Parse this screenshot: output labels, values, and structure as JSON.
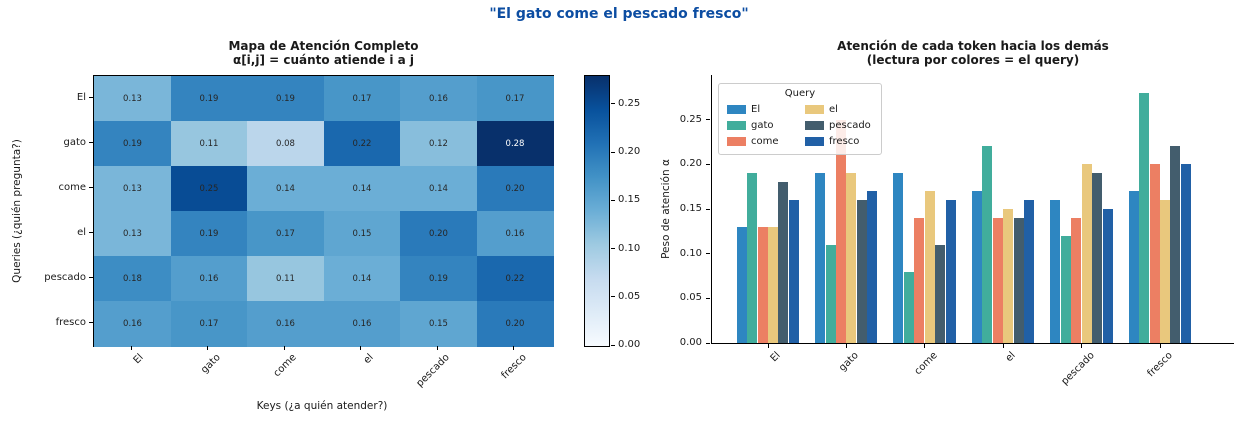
{
  "figure_title": "\"El gato come el pescado fresco\"",
  "colors": {
    "figure_title": "#0c4da2",
    "axis": "#000000",
    "tick_text": "#1a1a1a",
    "cell_text_dark": "#262626",
    "cell_text_light": "#ffffff"
  },
  "tokens": [
    "El",
    "gato",
    "come",
    "el",
    "pescado",
    "fresco"
  ],
  "chart_data": [
    {
      "type": "heatmap",
      "title": "Mapa de Atención Completo",
      "subtitle": "α[i,j] = cuánto atiende i a j",
      "xlabel": "Keys (¿a quién atender?)",
      "ylabel": "Queries (¿quién pregunta?)",
      "rows": [
        "El",
        "gato",
        "come",
        "el",
        "pescado",
        "fresco"
      ],
      "cols": [
        "El",
        "gato",
        "come",
        "el",
        "pescado",
        "fresco"
      ],
      "values": [
        [
          0.13,
          0.19,
          0.19,
          0.17,
          0.16,
          0.17
        ],
        [
          0.19,
          0.11,
          0.08,
          0.22,
          0.12,
          0.28
        ],
        [
          0.13,
          0.25,
          0.14,
          0.14,
          0.14,
          0.2
        ],
        [
          0.13,
          0.19,
          0.17,
          0.15,
          0.2,
          0.16
        ],
        [
          0.18,
          0.16,
          0.11,
          0.14,
          0.19,
          0.22
        ],
        [
          0.16,
          0.17,
          0.16,
          0.16,
          0.15,
          0.2
        ]
      ],
      "colormap": "Blues",
      "vmin": 0.0,
      "vmax": 0.28,
      "colorbar_ticks": [
        0.0,
        0.05,
        0.1,
        0.15,
        0.2,
        0.25
      ],
      "grid": false
    },
    {
      "type": "bar",
      "title": "Atención de cada token hacia los demás",
      "subtitle": "(lectura por colores = el query)",
      "ylabel": "Peso de atención α",
      "categories": [
        "El",
        "gato",
        "come",
        "el",
        "pescado",
        "fresco"
      ],
      "legend_title": "Query",
      "legend_position": "upper left",
      "series": [
        {
          "name": "El",
          "color": "#2e86c1",
          "values": [
            0.13,
            0.19,
            0.19,
            0.17,
            0.16,
            0.17
          ]
        },
        {
          "name": "gato",
          "color": "#41ad9c",
          "values": [
            0.19,
            0.11,
            0.08,
            0.22,
            0.12,
            0.28
          ]
        },
        {
          "name": "come",
          "color": "#ec7f63",
          "values": [
            0.13,
            0.25,
            0.14,
            0.14,
            0.14,
            0.2
          ]
        },
        {
          "name": "el",
          "color": "#e9c87d",
          "values": [
            0.13,
            0.19,
            0.17,
            0.15,
            0.2,
            0.16
          ]
        },
        {
          "name": "pescado",
          "color": "#435d6d",
          "values": [
            0.18,
            0.16,
            0.11,
            0.14,
            0.19,
            0.22
          ]
        },
        {
          "name": "fresco",
          "color": "#2160a6",
          "values": [
            0.16,
            0.17,
            0.16,
            0.16,
            0.15,
            0.2
          ]
        }
      ],
      "yticks": [
        0.0,
        0.05,
        0.1,
        0.15,
        0.2,
        0.25
      ],
      "ylim": [
        0.0,
        0.3
      ],
      "grid": false
    }
  ]
}
